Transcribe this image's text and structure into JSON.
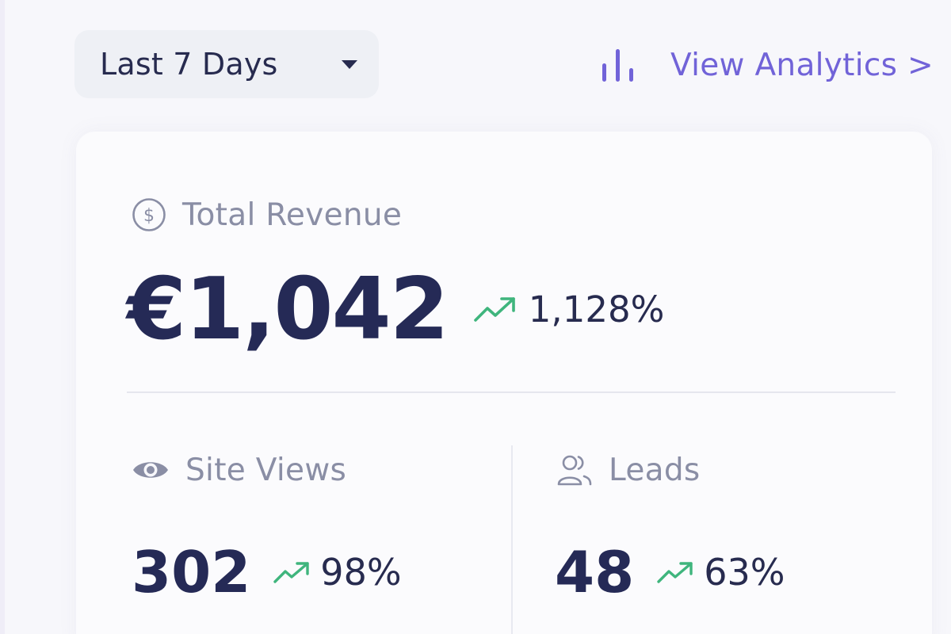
{
  "colors": {
    "accent": "#7163d8",
    "positive": "#3fb57d",
    "text_primary": "#252a56",
    "text_muted": "#8a8ea5",
    "background": "#f7f7fb"
  },
  "range_select": {
    "selected": "Last 7 Days",
    "icon": "chevron-down-icon"
  },
  "analytics_link": {
    "label": "View Analytics >",
    "icon": "bar-chart-icon"
  },
  "revenue": {
    "title": "Total Revenue",
    "icon": "dollar-circle-icon",
    "value": "€1,042",
    "change": "1,128%",
    "trend_icon": "trend-up-icon"
  },
  "site_views": {
    "title": "Site Views",
    "icon": "eye-icon",
    "value": "302",
    "change": "98%",
    "trend_icon": "trend-up-icon"
  },
  "leads": {
    "title": "Leads",
    "icon": "users-icon",
    "value": "48",
    "change": "63%",
    "trend_icon": "trend-up-icon"
  }
}
